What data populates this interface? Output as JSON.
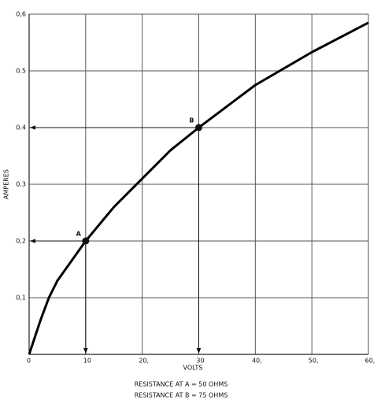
{
  "chart_data": {
    "type": "line",
    "x": [
      0,
      2,
      3.5,
      5,
      10,
      15,
      20,
      25,
      30,
      40,
      50,
      60
    ],
    "values": [
      0,
      0.06,
      0.1,
      0.13,
      0.2,
      0.26,
      0.31,
      0.36,
      0.4,
      0.475,
      0.533,
      0.585
    ],
    "color": "#000000",
    "xlim": [
      0,
      60
    ],
    "ylim": [
      0,
      0.6
    ],
    "xticks": [
      0,
      10,
      {
        "value": 20,
        "label": "20,"
      },
      30,
      {
        "value": 40,
        "label": "40,"
      },
      {
        "value": 50,
        "label": "50,"
      },
      {
        "value": 60,
        "label": "60,"
      }
    ],
    "yticks": [
      {
        "value": 0.1,
        "label": "0,1"
      },
      {
        "value": 0.2,
        "label": "0,2"
      },
      0.3,
      0.4,
      0.5,
      {
        "value": 0.6,
        "label": "0,6"
      }
    ],
    "grid": true,
    "xlabel": "VOLTS",
    "ylabel": "AMPERES",
    "points": [
      {
        "label": "A",
        "x": 10,
        "y": 0.2
      },
      {
        "label": "B",
        "x": 30,
        "y": 0.4
      }
    ],
    "annotations": [
      "RESISTANCE AT A = 50 OHMS",
      "RESISTANCE AT B = 75 OHMS"
    ]
  }
}
